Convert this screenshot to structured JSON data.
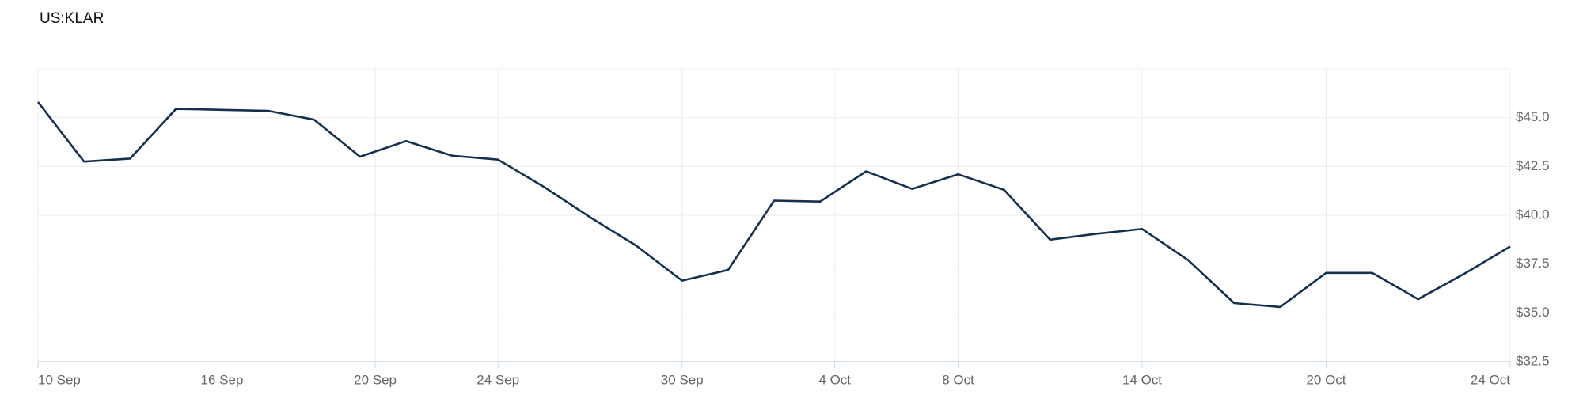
{
  "chart_data": {
    "type": "line",
    "title": "US:KLAR",
    "x": [
      0,
      1,
      2,
      3,
      4,
      5,
      6,
      7,
      8,
      9,
      10,
      11,
      12,
      13,
      14,
      15,
      16,
      17,
      18,
      19,
      20,
      21,
      22,
      23,
      24,
      25,
      26,
      27,
      28,
      29,
      30,
      31,
      32
    ],
    "series": [
      {
        "color": "#15304f",
        "values": [
          45.8,
          42.75,
          42.9,
          45.45,
          45.4,
          45.35,
          44.9,
          43.0,
          43.8,
          43.05,
          42.85,
          41.45,
          39.9,
          38.45,
          36.65,
          37.2,
          40.75,
          40.7,
          42.25,
          41.35,
          42.1,
          41.3,
          38.75,
          39.05,
          39.3,
          37.7,
          35.5,
          35.3,
          37.05,
          37.05,
          35.7,
          37.0,
          38.4
        ]
      }
    ],
    "xlim": [
      0,
      32
    ],
    "xticks": [
      {
        "value": 0,
        "label": "10 Sep"
      },
      {
        "value": 4,
        "label": "16 Sep"
      },
      {
        "value": 7.33,
        "label": "20 Sep"
      },
      {
        "value": 10,
        "label": "24 Sep"
      },
      {
        "value": 14,
        "label": "30 Sep"
      },
      {
        "value": 17.32,
        "label": "4 Oct"
      },
      {
        "value": 20,
        "label": "8 Oct"
      },
      {
        "value": 24,
        "label": "14 Oct"
      },
      {
        "value": 28,
        "label": "20 Oct"
      },
      {
        "value": 32,
        "label": "24 Oct"
      }
    ],
    "ylim": [
      32.5,
      47.5
    ],
    "yticks": [
      {
        "value": 32.5,
        "label": "$32.5"
      },
      {
        "value": 35,
        "label": "$35.0"
      },
      {
        "value": 37.5,
        "label": "$37.5"
      },
      {
        "value": 40,
        "label": "$40.0"
      },
      {
        "value": 42.5,
        "label": "$42.5"
      },
      {
        "value": 45,
        "label": "$45.0"
      }
    ],
    "grid": true
  }
}
